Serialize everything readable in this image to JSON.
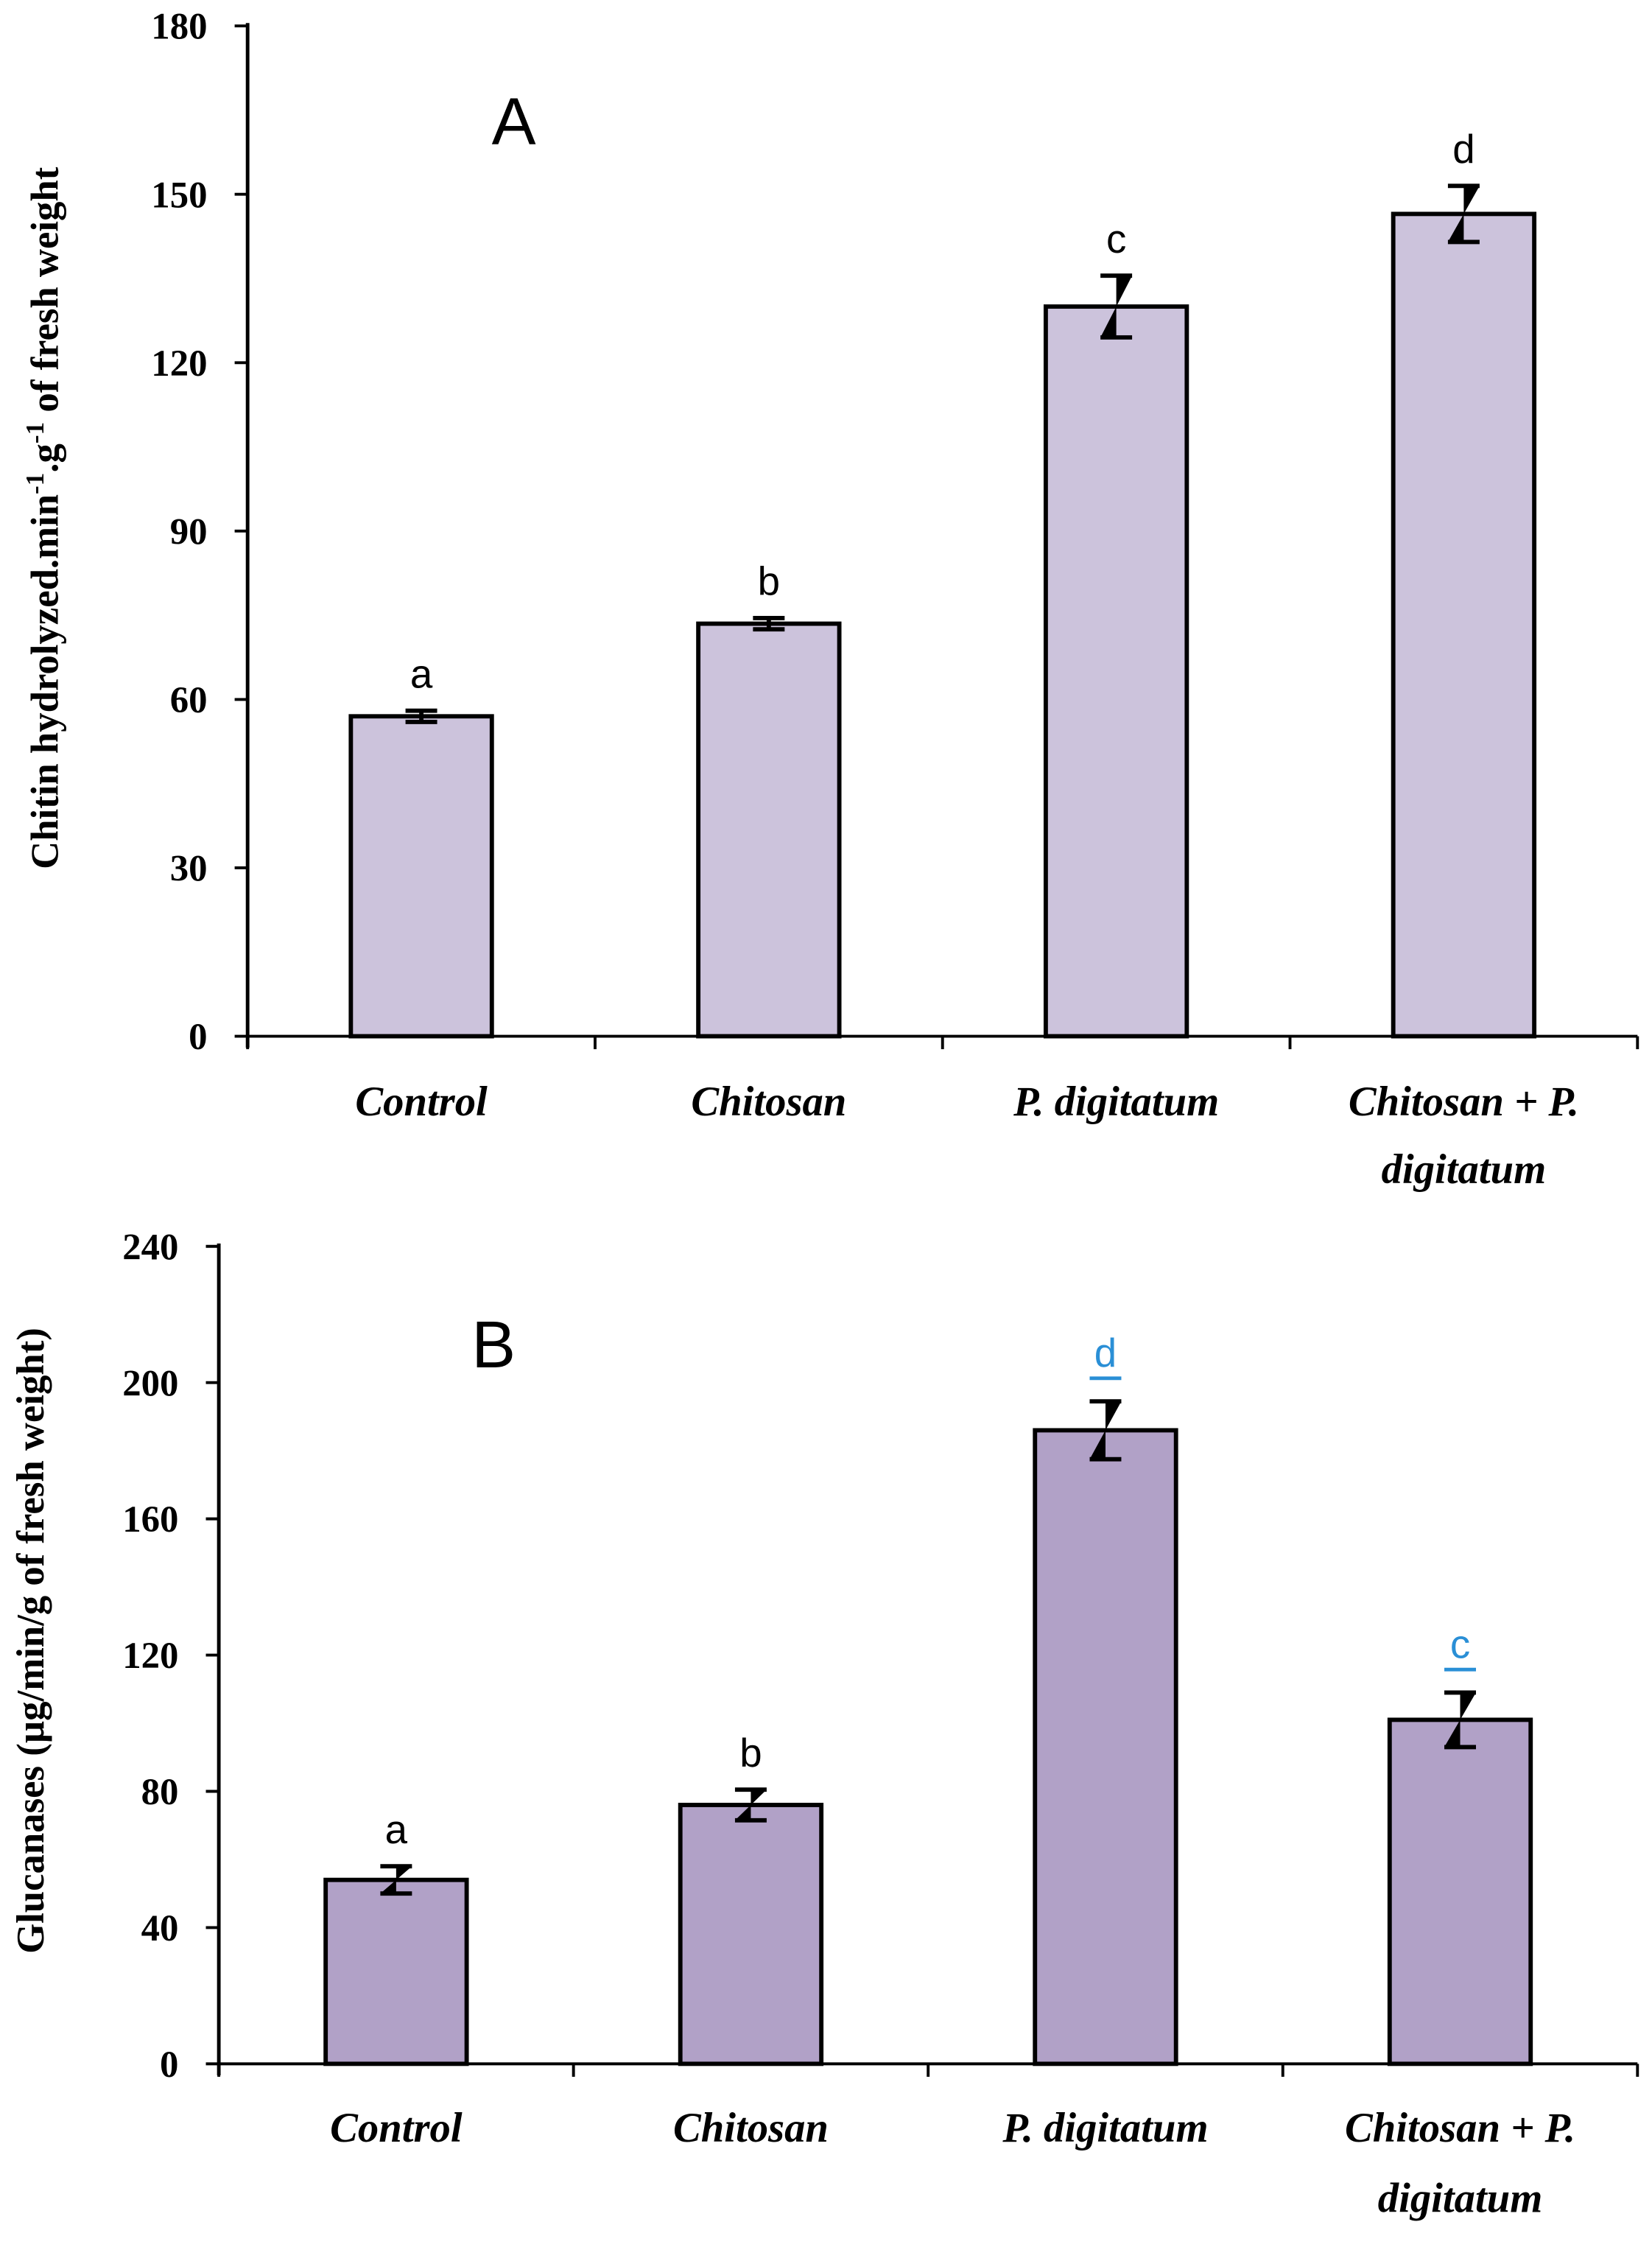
{
  "chart_data": [
    {
      "type": "bar",
      "panel_label": "A",
      "title": "",
      "xlabel": "",
      "ylabel": "Chitin hydrolyzed.min",
      "ylabel_sup1": "-1",
      "ylabel_mid": ".g",
      "ylabel_sup2": "-1",
      "ylabel_end": " of fresh weight",
      "categories": [
        [
          "Control"
        ],
        [
          "Chitosan"
        ],
        [
          "P. digitatum"
        ],
        [
          "Chitosan + P.",
          "digitatum"
        ]
      ],
      "values": [
        57,
        73.5,
        130,
        146.5
      ],
      "errors": [
        1,
        1,
        5.5,
        5
      ],
      "significance": [
        "a",
        "b",
        "c",
        "d"
      ],
      "significance_colors": [
        "#000000",
        "#000000",
        "#000000",
        "#000000"
      ],
      "significance_underline": [
        false,
        false,
        false,
        false
      ],
      "ylim": [
        0,
        180
      ],
      "yticks": [
        "0",
        "30",
        "60",
        "90",
        "120",
        "150",
        "180"
      ],
      "bar_color": "#ccc3dc",
      "grid": false
    },
    {
      "type": "bar",
      "panel_label": "B",
      "title": "",
      "xlabel": "",
      "ylabel": "Glucanases (µg/min/g of fresh weight)",
      "categories": [
        [
          "Control"
        ],
        [
          "Chitosan"
        ],
        [
          "P. digitatum"
        ],
        [
          "Chitosan + P.",
          "digitatum"
        ]
      ],
      "values": [
        54,
        76,
        186,
        101
      ],
      "errors": [
        4,
        4.5,
        8.5,
        8
      ],
      "significance": [
        "a",
        "b",
        "d",
        "c"
      ],
      "significance_colors": [
        "#000000",
        "#000000",
        "#2a8fd6",
        "#2a8fd6"
      ],
      "significance_underline": [
        false,
        false,
        true,
        true
      ],
      "ylim": [
        0,
        240
      ],
      "yticks": [
        "0",
        "40",
        "80",
        "120",
        "160",
        "200",
        "240"
      ],
      "bar_color": "#b1a1c7",
      "grid": false
    }
  ]
}
